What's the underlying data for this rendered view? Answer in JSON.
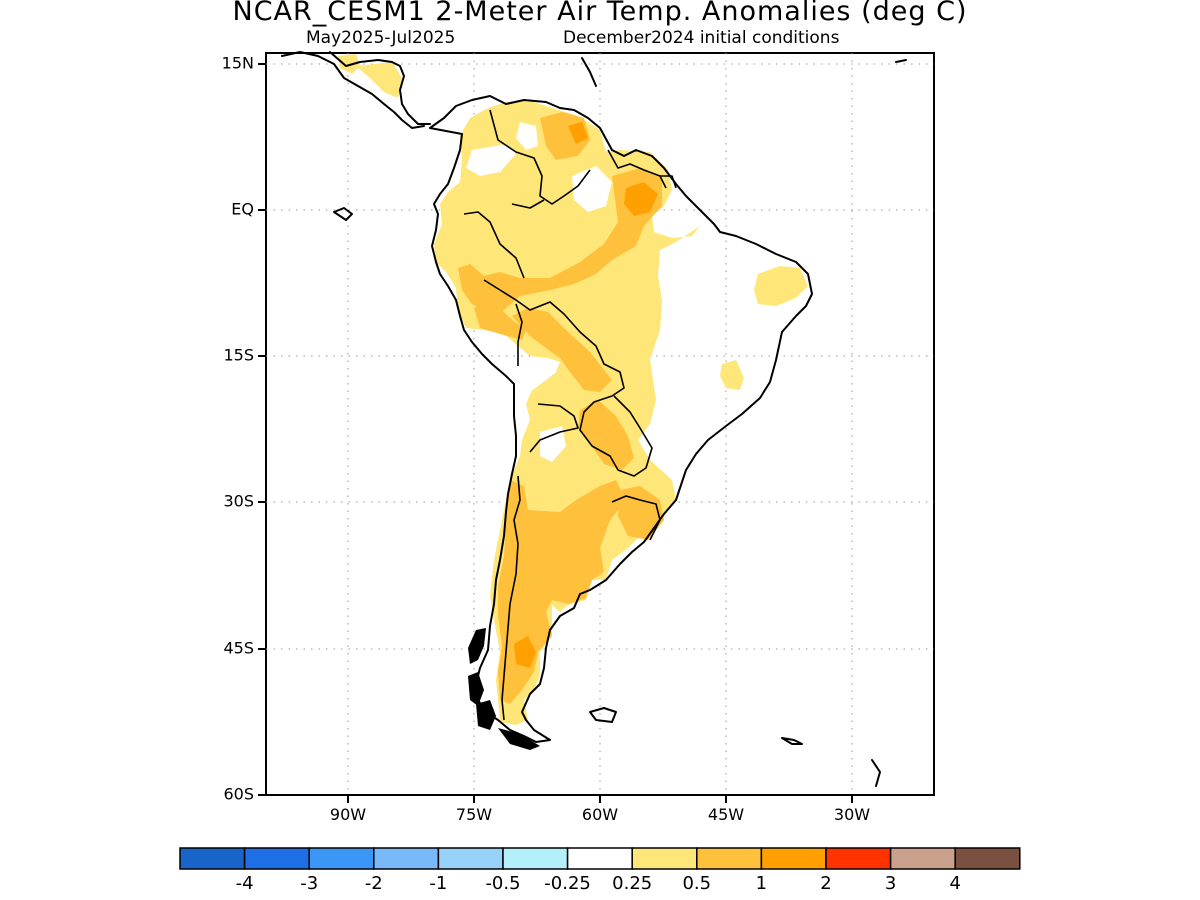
{
  "header": {
    "title": "NCAR_CESM1 2-Meter Air Temp. Anomalies (deg C)",
    "subtitle_left": "May2025-Jul2025",
    "subtitle_right": "December2024 initial conditions"
  },
  "map": {
    "region": "South America",
    "lat_labels": [
      "15N",
      "EQ",
      "15S",
      "30S",
      "45S",
      "60S"
    ],
    "lon_labels": [
      "90W",
      "75W",
      "60W",
      "45W",
      "30W"
    ],
    "grid": "dotted"
  },
  "colorbar": {
    "colors": [
      "#1964c8",
      "#1e6ee6",
      "#3c96f5",
      "#78b9fa",
      "#96d2fa",
      "#b4f0fa",
      "#ffffff",
      "#ffe678",
      "#ffc03c",
      "#ffa000",
      "#ff3200",
      "#c8a08c",
      "#7a5040"
    ],
    "labels": [
      "-4",
      "-3",
      "-2",
      "-1",
      "-0.5",
      "-0.25",
      "0.25",
      "0.5",
      "1",
      "2",
      "3",
      "4"
    ]
  }
}
